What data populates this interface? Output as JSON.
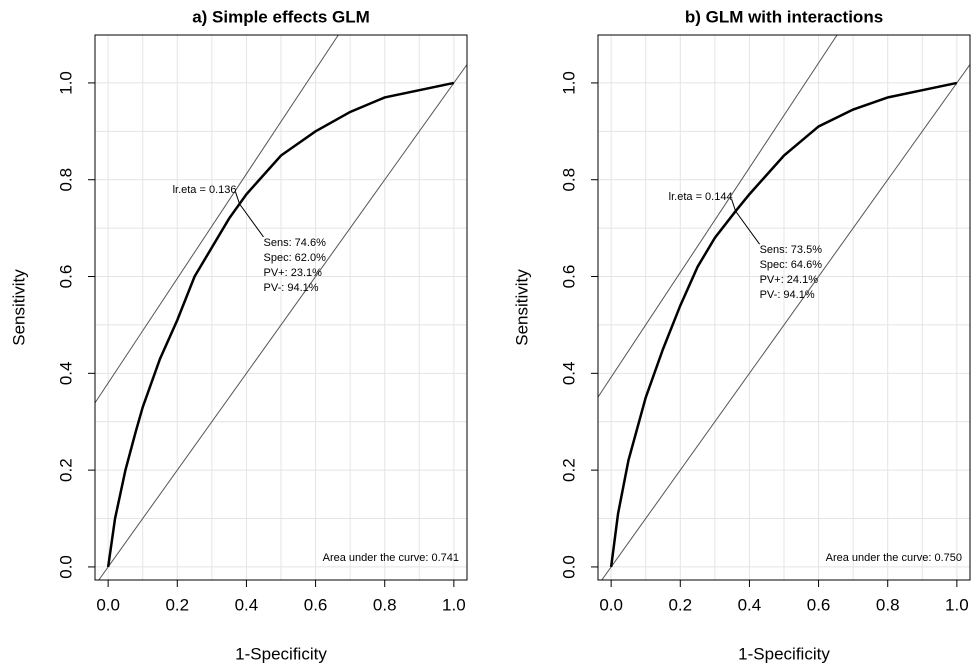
{
  "chart_data": [
    {
      "type": "line",
      "title": "a) Simple effects GLM",
      "xlabel": "1-Specificity",
      "ylabel": "Sensitivity",
      "x": [
        0,
        0.02,
        0.05,
        0.08,
        0.1,
        0.15,
        0.2,
        0.25,
        0.3,
        0.35,
        0.38,
        0.4,
        0.45,
        0.5,
        0.6,
        0.7,
        0.8,
        0.9,
        1
      ],
      "values": [
        0,
        0.1,
        0.2,
        0.28,
        0.33,
        0.43,
        0.51,
        0.6,
        0.66,
        0.72,
        0.75,
        0.77,
        0.81,
        0.85,
        0.9,
        0.94,
        0.97,
        0.985,
        1
      ],
      "color": "#000000",
      "reference_lines": [
        {
          "intercept": 0,
          "slope": 1
        },
        {
          "intercept": 0.38,
          "slope": 1.08
        }
      ],
      "annotation": {
        "label": "lr.eta = 0.136",
        "x": 0.38,
        "y": 0.75,
        "lines": [
          "Sens: 74.6%",
          "Spec: 62.0%",
          "PV+: 23.1%",
          "PV-: 94.1%"
        ]
      },
      "auc_text": "Area under the curve: 0.741",
      "xlim": [
        -0.038,
        1.038
      ],
      "ylim": [
        -0.027,
        1.099
      ],
      "xticks": [
        {
          "value": 0,
          "label": "0.0"
        },
        0.2,
        0.4,
        0.6,
        0.8,
        {
          "value": 1,
          "label": "1.0"
        }
      ],
      "yticks": [
        {
          "value": 0,
          "label": "0.0"
        },
        0.2,
        0.4,
        0.6,
        0.8,
        {
          "value": 1,
          "label": "1.0"
        }
      ],
      "xgrid": [
        0,
        0.1,
        0.2,
        0.3,
        0.4,
        0.5,
        0.6,
        0.7,
        0.8,
        0.9,
        1
      ],
      "ygrid": [
        0,
        0.1,
        0.2,
        0.3,
        0.4,
        0.5,
        0.6,
        0.7,
        0.8,
        0.9,
        1
      ]
    },
    {
      "type": "line",
      "title": "b) GLM with interactions",
      "xlabel": "1-Specificity",
      "ylabel": "Sensitivity",
      "x": [
        0,
        0.02,
        0.05,
        0.1,
        0.15,
        0.2,
        0.25,
        0.3,
        0.36,
        0.4,
        0.45,
        0.5,
        0.6,
        0.7,
        0.8,
        0.9,
        1
      ],
      "values": [
        0,
        0.11,
        0.22,
        0.35,
        0.45,
        0.54,
        0.62,
        0.68,
        0.735,
        0.77,
        0.81,
        0.85,
        0.91,
        0.945,
        0.97,
        0.985,
        1
      ],
      "color": "#000000",
      "reference_lines": [
        {
          "intercept": 0,
          "slope": 1
        },
        {
          "intercept": 0.392,
          "slope": 1.082
        }
      ],
      "annotation": {
        "label": "lr.eta = 0.144",
        "x": 0.36,
        "y": 0.735,
        "lines": [
          "Sens: 73.5%",
          "Spec: 64.6%",
          "PV+: 24.1%",
          "PV-: 94.1%"
        ]
      },
      "auc_text": "Area under the curve: 0.750",
      "xlim": [
        -0.038,
        1.038
      ],
      "ylim": [
        -0.027,
        1.099
      ],
      "xticks": [
        {
          "value": 0,
          "label": "0.0"
        },
        0.2,
        0.4,
        0.6,
        0.8,
        {
          "value": 1,
          "label": "1.0"
        }
      ],
      "yticks": [
        {
          "value": 0,
          "label": "0.0"
        },
        0.2,
        0.4,
        0.6,
        0.8,
        {
          "value": 1,
          "label": "1.0"
        }
      ],
      "xgrid": [
        0,
        0.1,
        0.2,
        0.3,
        0.4,
        0.5,
        0.6,
        0.7,
        0.8,
        0.9,
        1
      ],
      "ygrid": [
        0,
        0.1,
        0.2,
        0.3,
        0.4,
        0.5,
        0.6,
        0.7,
        0.8,
        0.9,
        1
      ]
    }
  ]
}
